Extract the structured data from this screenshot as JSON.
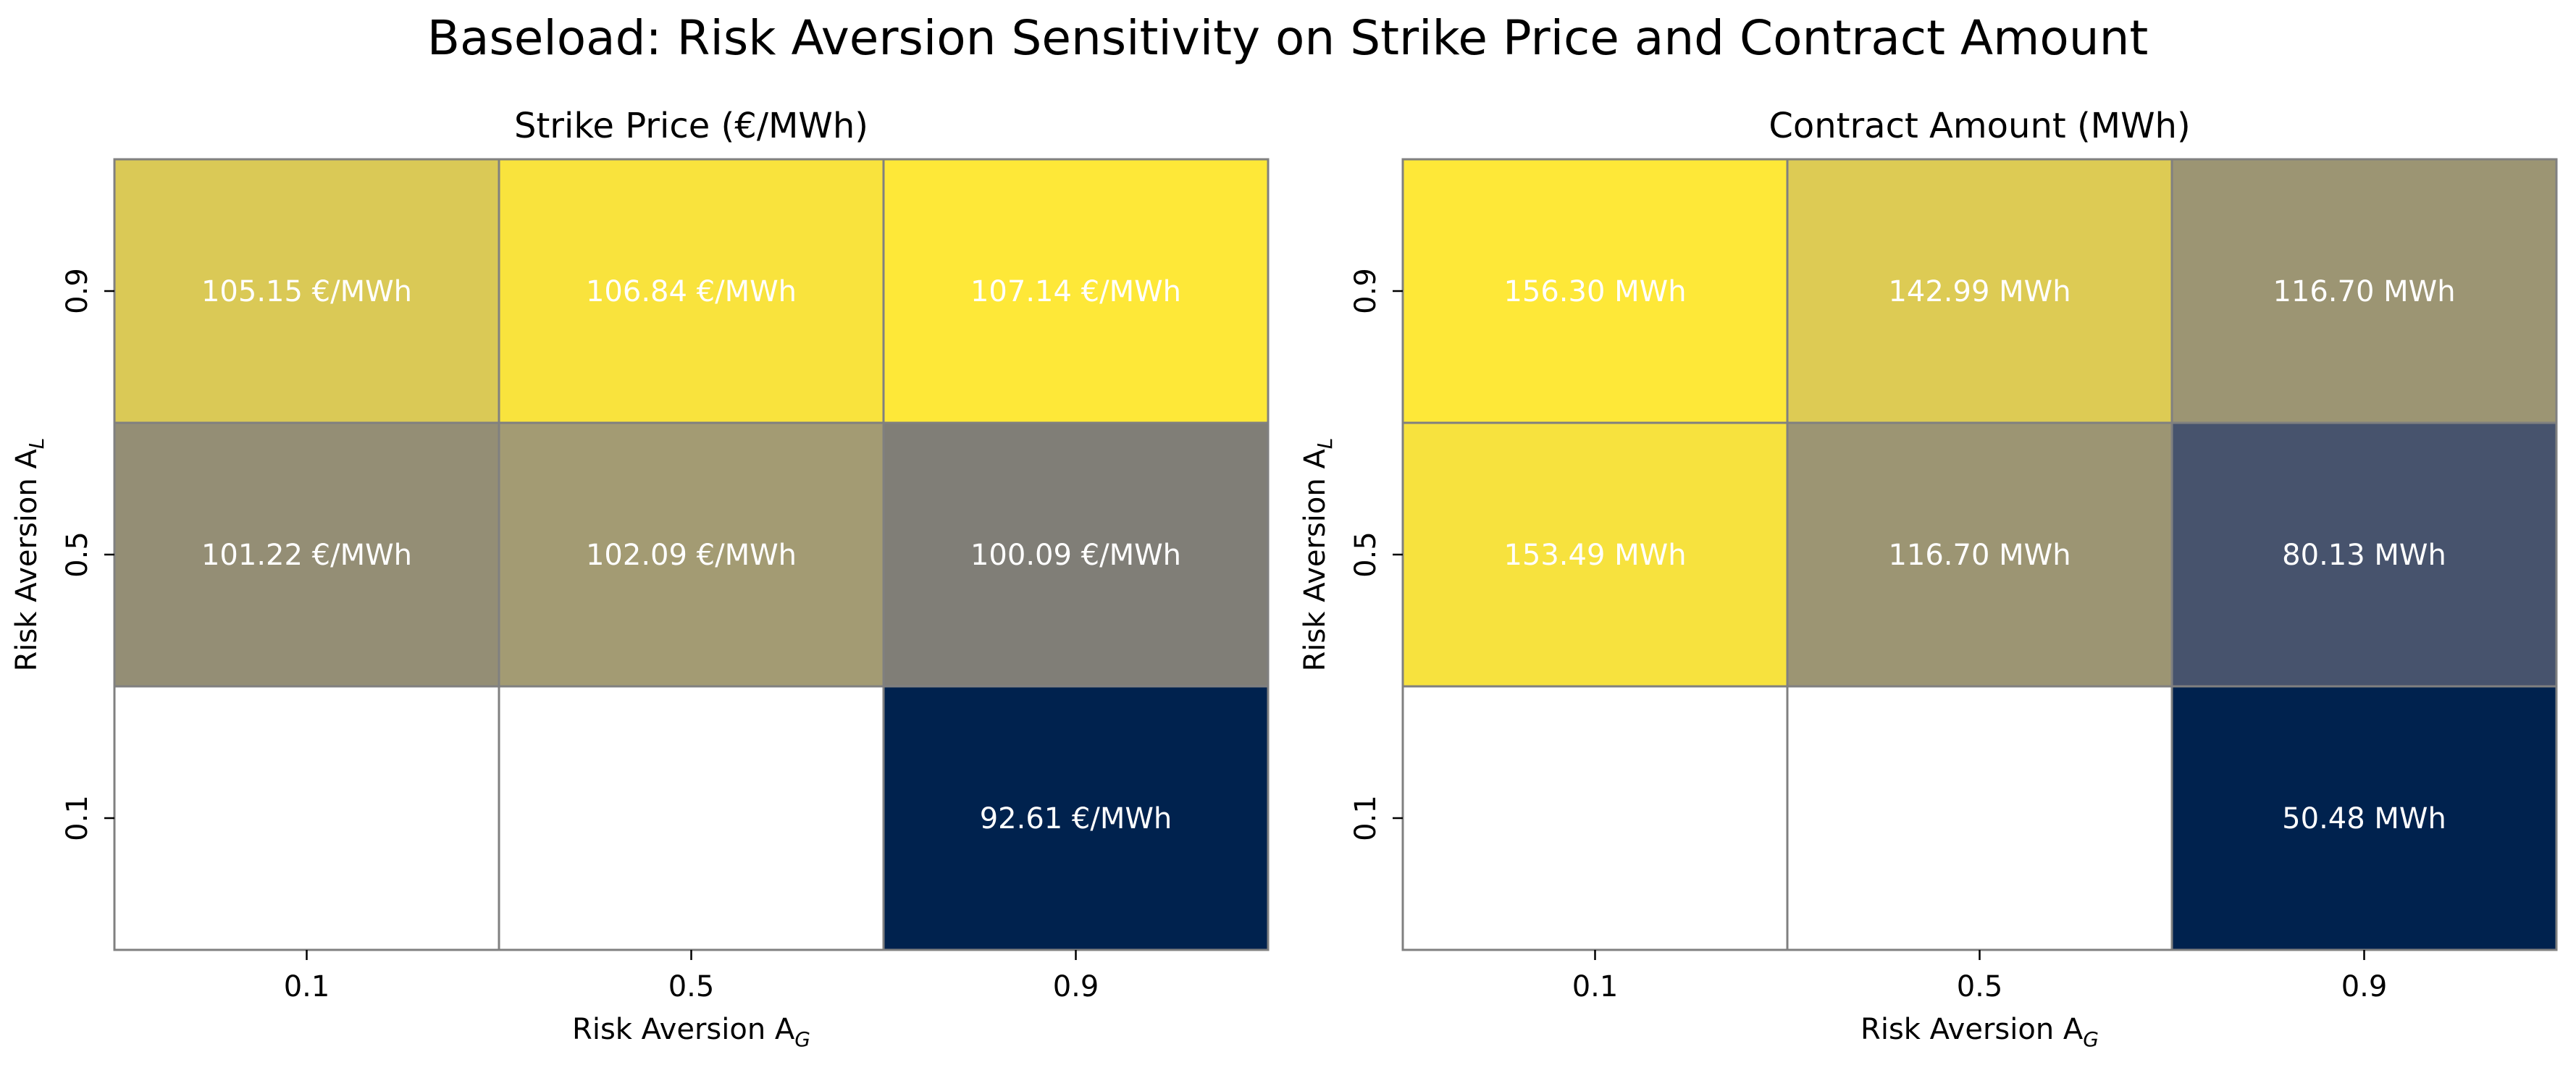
{
  "figure": {
    "title": "Baseload: Risk Aversion Sensitivity on Strike Price and Contract Amount"
  },
  "chart_data": [
    {
      "type": "heatmap",
      "title": "Strike Price (€/MWh)",
      "xlabel": "Risk Aversion",
      "xlabel_sub": "G",
      "ylabel": "Risk Aversion",
      "ylabel_sub": "L",
      "x_categories": [
        "0.1",
        "0.5",
        "0.9"
      ],
      "y_categories": [
        "0.9",
        "0.5",
        "0.1"
      ],
      "values": [
        [
          105.15,
          106.84,
          107.14
        ],
        [
          101.22,
          102.09,
          100.09
        ],
        [
          null,
          null,
          92.61
        ]
      ],
      "labels": [
        [
          "105.15 €/MWh",
          "106.84 €/MWh",
          "107.14 €/MWh"
        ],
        [
          "101.22 €/MWh",
          "102.09 €/MWh",
          "100.09 €/MWh"
        ],
        [
          "",
          "",
          "92.61 €/MWh"
        ]
      ],
      "colormap": "cividis",
      "vmin": 92.61,
      "vmax": 107.14
    },
    {
      "type": "heatmap",
      "title": "Contract Amount (MWh)",
      "xlabel": "Risk Aversion",
      "xlabel_sub": "G",
      "ylabel": "Risk Aversion",
      "ylabel_sub": "L",
      "x_categories": [
        "0.1",
        "0.5",
        "0.9"
      ],
      "y_categories": [
        "0.9",
        "0.5",
        "0.1"
      ],
      "values": [
        [
          156.3,
          142.99,
          116.7
        ],
        [
          153.49,
          116.7,
          80.13
        ],
        [
          null,
          null,
          50.48
        ]
      ],
      "labels": [
        [
          "156.30 MWh",
          "142.99 MWh",
          "116.70 MWh"
        ],
        [
          "153.49 MWh",
          "116.70 MWh",
          "80.13 MWh"
        ],
        [
          "",
          "",
          "50.48 MWh"
        ]
      ],
      "colormap": "cividis",
      "vmin": 50.48,
      "vmax": 156.3
    }
  ]
}
